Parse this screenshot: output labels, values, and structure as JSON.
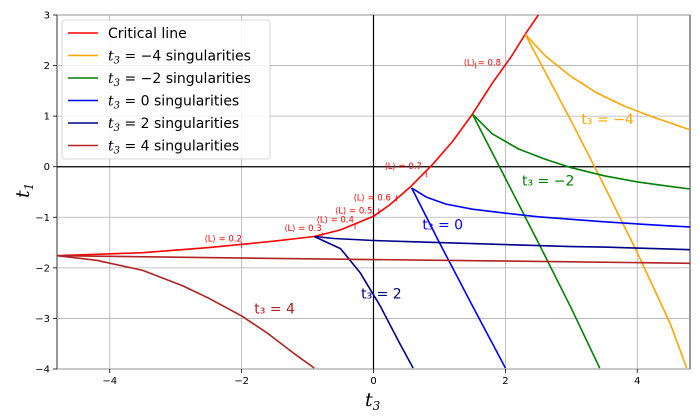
{
  "chart_data": {
    "type": "line",
    "title": "",
    "xlabel": "t",
    "xlabel_sub": "3",
    "ylabel": "t",
    "ylabel_sub": "1",
    "xlim": [
      -4.8,
      4.8
    ],
    "ylim": [
      -4,
      3
    ],
    "xticks": [
      -4,
      -2,
      0,
      2,
      4
    ],
    "xtick_labels": [
      "−4",
      "−2",
      "0",
      "2",
      "4"
    ],
    "yticks": [
      -4,
      -3,
      -2,
      -1,
      0,
      1,
      2,
      3
    ],
    "ytick_labels": [
      "−4",
      "−3",
      "−2",
      "−1",
      "0",
      "1",
      "2",
      "3"
    ],
    "grid": true,
    "zero_lines": true,
    "legend_position": "top-left",
    "series": [
      {
        "name": "Critical line",
        "color": "#ff0000",
        "x": [
          -4.8,
          -3.5,
          -2.5,
          -1.5,
          -0.9,
          -0.5,
          0,
          0.25,
          0.55,
          0.9,
          1.2,
          1.5,
          1.8,
          2.1,
          2.3,
          2.5
        ],
        "y": [
          -1.76,
          -1.7,
          -1.6,
          -1.47,
          -1.38,
          -1.25,
          -0.98,
          -0.75,
          -0.41,
          0.05,
          0.5,
          1.04,
          1.65,
          2.2,
          2.62,
          3.0
        ]
      },
      {
        "name": "t₃ = −4 singularities",
        "legend_main": "t",
        "legend_sub": "3",
        "legend_rest": " = −4 singularities",
        "color": "#ffa500",
        "branches": [
          {
            "x": [
              2.3,
              2.6,
              3.0,
              3.4,
              3.8,
              4.2,
              4.6,
              4.8
            ],
            "y": [
              2.62,
              2.2,
              1.78,
              1.45,
              1.2,
              1.0,
              0.82,
              0.73
            ]
          },
          {
            "x": [
              2.3,
              3.0,
              3.5,
              4.0,
              4.5,
              4.75
            ],
            "y": [
              2.62,
              0.9,
              -0.38,
              -1.7,
              -3.1,
              -3.98
            ]
          }
        ]
      },
      {
        "name": "t₃ = −2 singularities",
        "legend_main": "t",
        "legend_sub": "3",
        "legend_rest": " = −2 singularities",
        "color": "#008000",
        "branches": [
          {
            "x": [
              1.5,
              1.8,
              2.2,
              2.6,
              3.0,
              3.5,
              4.0,
              4.5,
              4.8
            ],
            "y": [
              1.04,
              0.65,
              0.35,
              0.15,
              -0.02,
              -0.18,
              -0.3,
              -0.39,
              -0.44
            ]
          },
          {
            "x": [
              1.5,
              2.0,
              2.5,
              3.0,
              3.43
            ],
            "y": [
              1.04,
              -0.23,
              -1.5,
              -2.8,
              -3.98
            ]
          }
        ]
      },
      {
        "name": "t₃ = 0 singularities",
        "legend_main": "t",
        "legend_sub": "3",
        "legend_rest": " = 0 singularities",
        "color": "#0000ff",
        "branches": [
          {
            "x": [
              0.58,
              0.8,
              1.1,
              1.5,
              2.0,
              2.5,
              3.0,
              3.5,
              4.0,
              4.5,
              4.8
            ],
            "y": [
              -0.42,
              -0.6,
              -0.74,
              -0.84,
              -0.92,
              -0.99,
              -1.04,
              -1.09,
              -1.13,
              -1.17,
              -1.19
            ]
          },
          {
            "x": [
              0.58,
              1.0,
              1.5,
              2.0
            ],
            "y": [
              -0.42,
              -1.5,
              -2.75,
              -3.98
            ]
          }
        ]
      },
      {
        "name": "t₃ = 2 singularities",
        "legend_main": "t",
        "legend_sub": "3",
        "legend_rest": " = 2 singularities",
        "color": "#00008b",
        "branches": [
          {
            "x": [
              -0.9,
              -0.6,
              -0.3,
              0,
              0.5,
              1.0,
              1.5,
              2.0,
              2.5,
              3.0,
              3.5,
              4.0,
              4.5,
              4.8
            ],
            "y": [
              -1.38,
              -1.42,
              -1.44,
              -1.46,
              -1.48,
              -1.5,
              -1.52,
              -1.54,
              -1.56,
              -1.58,
              -1.59,
              -1.61,
              -1.63,
              -1.64
            ]
          },
          {
            "x": [
              -0.9,
              -0.5,
              -0.2,
              0.1,
              0.4,
              0.6
            ],
            "y": [
              -1.38,
              -1.62,
              -2.1,
              -2.75,
              -3.5,
              -3.98
            ]
          }
        ]
      },
      {
        "name": "t₃ = 4 singularities",
        "legend_main": "t",
        "legend_sub": "3",
        "legend_rest": " = 4 singularities",
        "color": "#b22222",
        "branches": [
          {
            "x": [
              -4.8,
              -3.0,
              -1.0,
              1.0,
              3.0,
              4.8
            ],
            "y": [
              -1.76,
              -1.79,
              -1.82,
              -1.85,
              -1.88,
              -1.91
            ]
          },
          {
            "x": [
              -4.8,
              -4.2,
              -3.5,
              -2.9,
              -2.5,
              -2.0,
              -1.6,
              -1.2,
              -0.9
            ],
            "y": [
              -1.76,
              -1.85,
              -2.05,
              -2.35,
              -2.6,
              -2.95,
              -3.3,
              -3.7,
              -3.98
            ]
          }
        ]
      }
    ],
    "annotations": [
      {
        "text": "⟨L⟩ = 0.8",
        "x": 1.65,
        "y": 2.0,
        "color": "#ff0000",
        "size": "small"
      },
      {
        "text": "⟨L⟩ = 0.7",
        "x": 0.45,
        "y": -0.05,
        "color": "#ff0000",
        "size": "small"
      },
      {
        "text": "⟨L⟩ = 0.6",
        "x": -0.02,
        "y": -0.67,
        "color": "#ff0000",
        "size": "small"
      },
      {
        "text": "⟨L⟩ = 0.5",
        "x": -0.3,
        "y": -0.93,
        "color": "#ff0000",
        "size": "small"
      },
      {
        "text": "⟨L⟩ = 0.4",
        "x": -0.58,
        "y": -1.1,
        "color": "#ff0000",
        "size": "small"
      },
      {
        "text": "⟨L⟩ = 0.3",
        "x": -1.07,
        "y": -1.27,
        "color": "#ff0000",
        "size": "small"
      },
      {
        "text": "⟨L⟩ = 0.2",
        "x": -2.28,
        "y": -1.48,
        "color": "#ff0000",
        "size": "small"
      },
      {
        "text": "t₃ = −4",
        "x": 3.55,
        "y": 0.84,
        "color": "#ffa500",
        "size": "big"
      },
      {
        "text": "t₃ = −2",
        "x": 2.65,
        "y": -0.37,
        "color": "#008000",
        "size": "big"
      },
      {
        "text": "t₃ = 0",
        "x": 1.05,
        "y": -1.24,
        "color": "#0000ff",
        "size": "big"
      },
      {
        "text": "t₃ = 2",
        "x": 0.12,
        "y": -2.61,
        "color": "#00008b",
        "size": "big"
      },
      {
        "text": "t₃ = 4",
        "x": -1.5,
        "y": -2.9,
        "color": "#b22222",
        "size": "big"
      }
    ],
    "markers": [
      {
        "x": 1.55,
        "y": 2.0
      },
      {
        "x": 0.8,
        "y": -0.15
      },
      {
        "x": 0.35,
        "y": -0.62
      },
      {
        "x": 0.08,
        "y": -0.88
      },
      {
        "x": -0.28,
        "y": -1.18
      },
      {
        "x": -0.78,
        "y": -1.36
      },
      {
        "x": -2.0,
        "y": -1.55
      }
    ]
  }
}
